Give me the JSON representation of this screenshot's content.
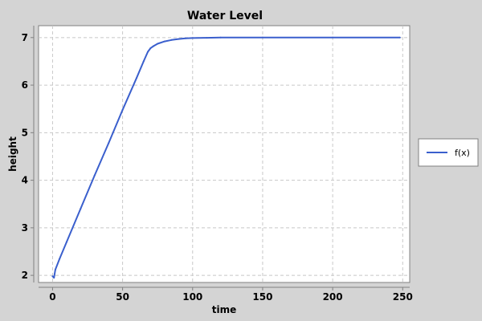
{
  "chart_data": {
    "type": "line",
    "title": "Water Level",
    "xlabel": "time",
    "ylabel": "height",
    "xlim": [
      -10,
      255
    ],
    "ylim": [
      1.85,
      7.25
    ],
    "xticks": [
      0,
      50,
      100,
      150,
      200,
      250
    ],
    "yticks": [
      2,
      3,
      4,
      5,
      6,
      7
    ],
    "grid": true,
    "legend_position": "right",
    "series": [
      {
        "name": "f(x)",
        "color": "#3a5fcd",
        "x": [
          0,
          1,
          2,
          5,
          10,
          20,
          30,
          40,
          50,
          60,
          65,
          68,
          70,
          72,
          75,
          80,
          85,
          90,
          95,
          100,
          110,
          120,
          150,
          200,
          248
        ],
        "y": [
          1.98,
          1.95,
          2.12,
          2.35,
          2.7,
          3.4,
          4.1,
          4.78,
          5.48,
          6.15,
          6.5,
          6.7,
          6.78,
          6.82,
          6.87,
          6.92,
          6.95,
          6.97,
          6.985,
          6.99,
          6.995,
          7.0,
          7.0,
          7.0,
          7.0
        ]
      }
    ]
  }
}
